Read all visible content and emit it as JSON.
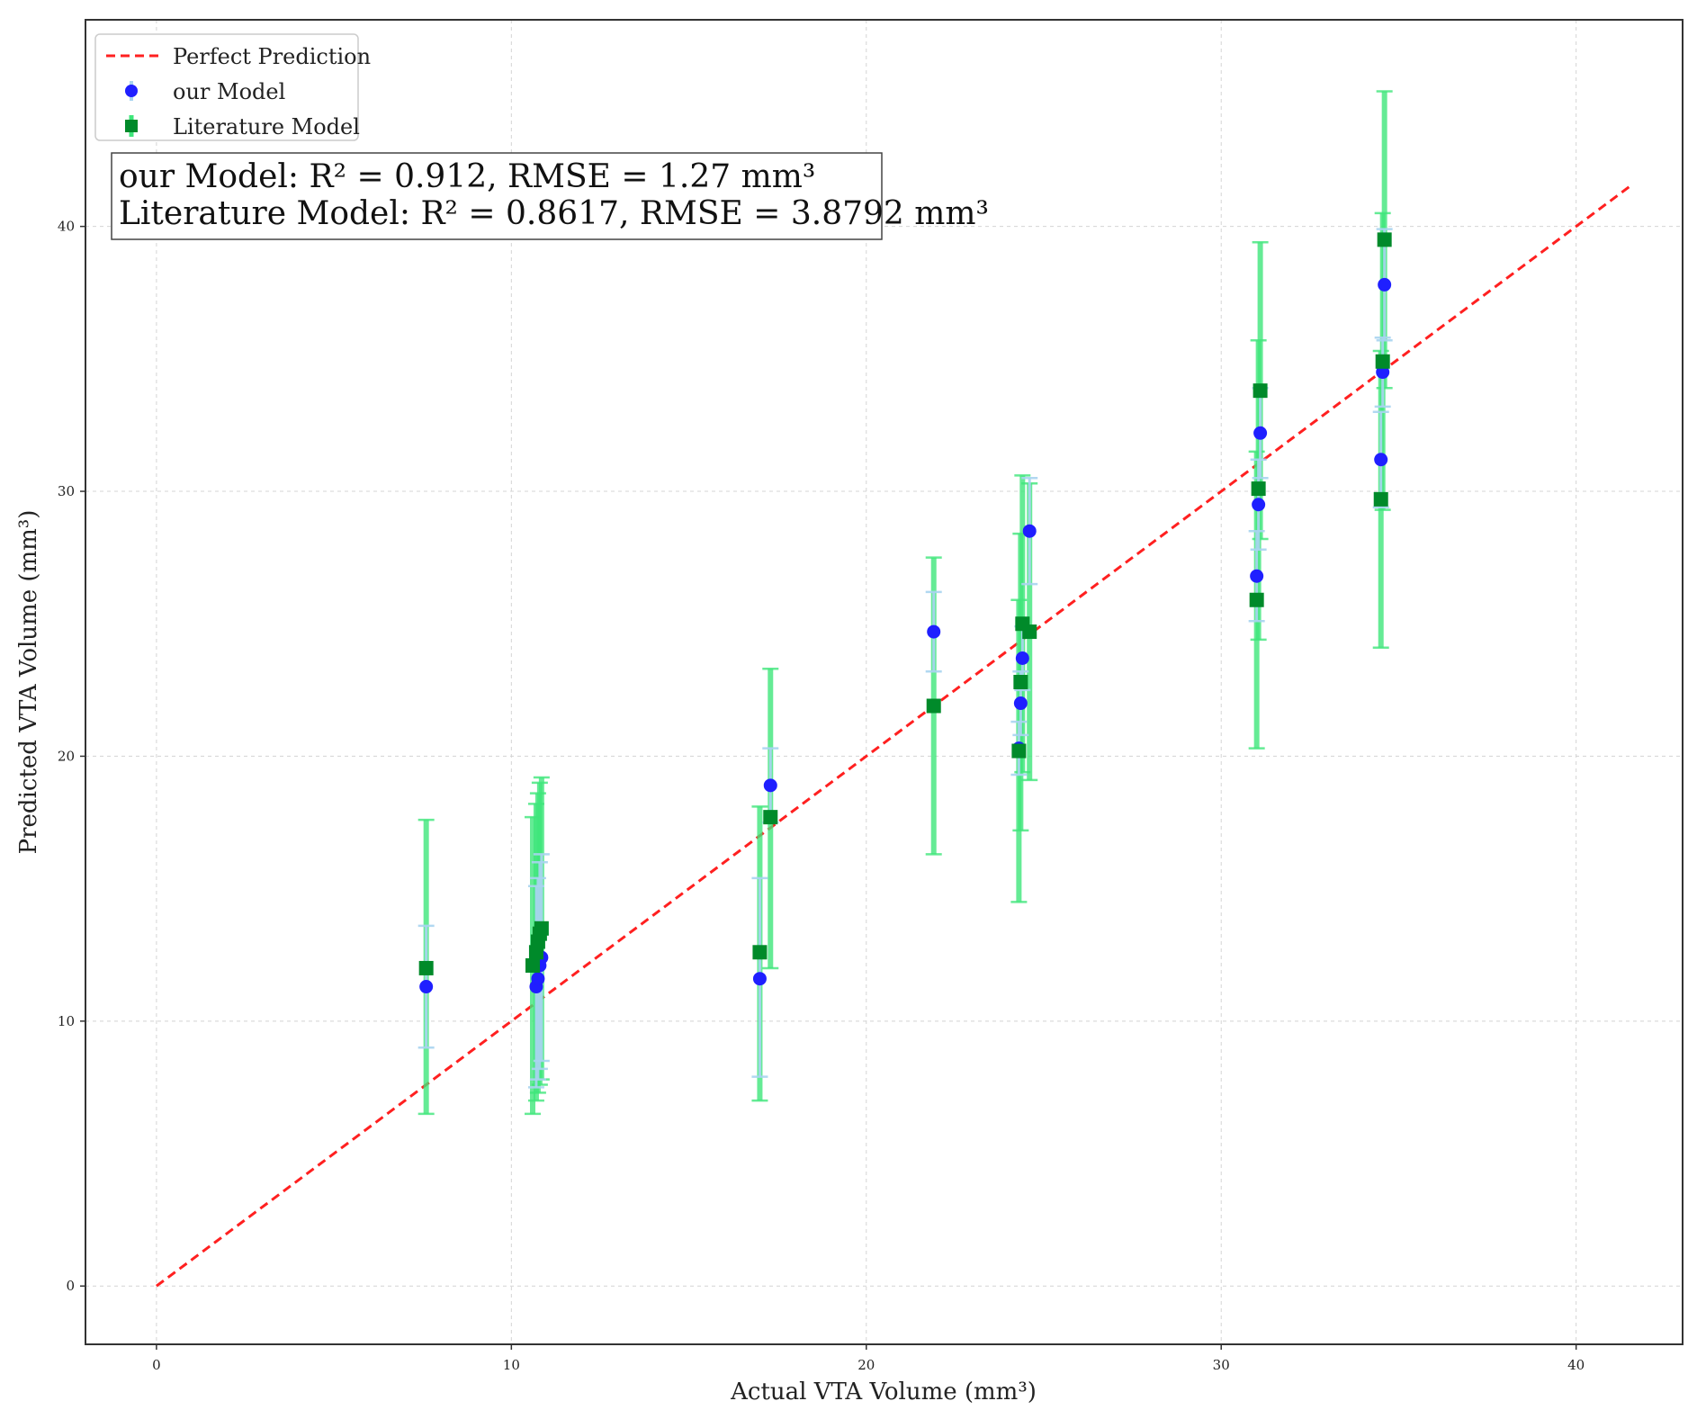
{
  "chart_data": {
    "type": "scatter",
    "title": "",
    "xlabel": "Actual VTA Volume (mm³)",
    "ylabel": "Predicted VTA Volume (mm³)",
    "xlim": [
      -2,
      43
    ],
    "ylim": [
      -2.2,
      47.8
    ],
    "xticks": [
      0,
      10,
      20,
      30,
      40
    ],
    "yticks": [
      0,
      10,
      20,
      30,
      40
    ],
    "grid": true,
    "legend_position": "top-left",
    "legend": [
      "Perfect Prediction",
      "our Model",
      "Literature Model"
    ],
    "stats": [
      "our Model: R² = 0.912, RMSE = 1.27 mm³",
      "Literature Model: R² = 0.8617, RMSE = 3.8792 mm³"
    ],
    "reference_line": {
      "name": "Perfect Prediction",
      "from": [
        0,
        0
      ],
      "to": [
        41.5,
        41.5
      ],
      "color": "#ff2020",
      "style": "dashed"
    },
    "series": [
      {
        "name": "our Model",
        "marker": "circle",
        "color": "#1f1fff",
        "error_color": "#a8d4f0",
        "points": [
          {
            "x": 7.6,
            "y": 11.3,
            "lo": 9.0,
            "hi": 13.6
          },
          {
            "x": 10.7,
            "y": 11.3,
            "lo": 7.5,
            "hi": 15.1
          },
          {
            "x": 10.75,
            "y": 11.6,
            "lo": 7.8,
            "hi": 15.4
          },
          {
            "x": 10.8,
            "y": 12.1,
            "lo": 8.2,
            "hi": 16.0
          },
          {
            "x": 10.85,
            "y": 12.4,
            "lo": 8.5,
            "hi": 16.3
          },
          {
            "x": 17.0,
            "y": 11.6,
            "lo": 7.9,
            "hi": 15.4
          },
          {
            "x": 17.3,
            "y": 18.9,
            "lo": 17.5,
            "hi": 20.3
          },
          {
            "x": 21.9,
            "y": 24.7,
            "lo": 23.2,
            "hi": 26.2
          },
          {
            "x": 24.3,
            "y": 20.3,
            "lo": 19.3,
            "hi": 21.3
          },
          {
            "x": 24.35,
            "y": 22.0,
            "lo": 20.8,
            "hi": 23.2
          },
          {
            "x": 24.4,
            "y": 23.7,
            "lo": 22.5,
            "hi": 24.9
          },
          {
            "x": 24.6,
            "y": 28.5,
            "lo": 26.5,
            "hi": 30.5
          },
          {
            "x": 31.0,
            "y": 26.8,
            "lo": 25.1,
            "hi": 28.5
          },
          {
            "x": 31.05,
            "y": 29.5,
            "lo": 27.8,
            "hi": 31.2
          },
          {
            "x": 31.1,
            "y": 32.2,
            "lo": 30.5,
            "hi": 33.9
          },
          {
            "x": 34.5,
            "y": 31.2,
            "lo": 29.4,
            "hi": 33.0
          },
          {
            "x": 34.55,
            "y": 34.5,
            "lo": 33.2,
            "hi": 35.8
          },
          {
            "x": 34.6,
            "y": 37.8,
            "lo": 35.7,
            "hi": 39.9
          }
        ]
      },
      {
        "name": "Literature Model",
        "marker": "square",
        "color": "#008a2a",
        "error_color": "#3ee67a",
        "points": [
          {
            "x": 7.6,
            "y": 12.0,
            "lo": 6.5,
            "hi": 17.6
          },
          {
            "x": 10.6,
            "y": 12.1,
            "lo": 6.5,
            "hi": 17.7
          },
          {
            "x": 10.7,
            "y": 12.6,
            "lo": 7.0,
            "hi": 18.2
          },
          {
            "x": 10.75,
            "y": 13.0,
            "lo": 7.3,
            "hi": 18.6
          },
          {
            "x": 10.8,
            "y": 13.3,
            "lo": 7.6,
            "hi": 19.0
          },
          {
            "x": 10.85,
            "y": 13.5,
            "lo": 7.8,
            "hi": 19.2
          },
          {
            "x": 17.0,
            "y": 12.6,
            "lo": 7.0,
            "hi": 18.1
          },
          {
            "x": 17.3,
            "y": 17.7,
            "lo": 12.0,
            "hi": 23.3
          },
          {
            "x": 21.9,
            "y": 21.9,
            "lo": 16.3,
            "hi": 27.5
          },
          {
            "x": 24.3,
            "y": 20.2,
            "lo": 14.5,
            "hi": 25.9
          },
          {
            "x": 24.35,
            "y": 22.8,
            "lo": 17.2,
            "hi": 28.4
          },
          {
            "x": 24.4,
            "y": 25.0,
            "lo": 19.4,
            "hi": 30.6
          },
          {
            "x": 24.6,
            "y": 24.7,
            "lo": 19.1,
            "hi": 30.3
          },
          {
            "x": 31.0,
            "y": 25.9,
            "lo": 20.3,
            "hi": 31.5
          },
          {
            "x": 31.05,
            "y": 30.1,
            "lo": 24.4,
            "hi": 35.7
          },
          {
            "x": 31.1,
            "y": 33.8,
            "lo": 28.2,
            "hi": 39.4
          },
          {
            "x": 34.5,
            "y": 29.7,
            "lo": 24.1,
            "hi": 35.3
          },
          {
            "x": 34.55,
            "y": 34.9,
            "lo": 29.3,
            "hi": 40.5
          },
          {
            "x": 34.6,
            "y": 39.5,
            "lo": 33.9,
            "hi": 45.1
          }
        ]
      }
    ]
  }
}
